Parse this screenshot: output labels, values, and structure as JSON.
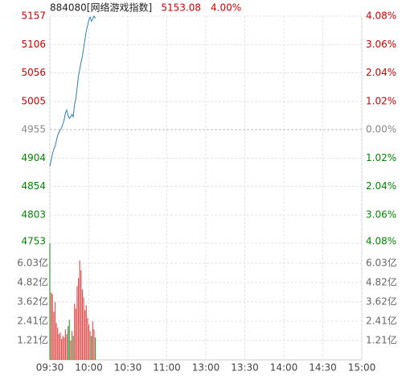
{
  "header": {
    "name": "884080[网络游戏指数]",
    "price": "5153.08",
    "change": "4.00%"
  },
  "chart_data": [
    {
      "type": "line",
      "x": [
        0,
        1,
        2,
        3,
        4,
        5,
        6,
        7,
        8,
        9,
        10,
        11,
        12,
        13,
        14,
        15,
        16,
        17,
        18,
        19,
        20,
        21,
        22,
        23,
        24,
        25,
        26,
        27,
        28,
        29,
        30,
        31,
        32,
        33,
        34,
        35
      ],
      "xlim": [
        0,
        240
      ],
      "xticks": [
        {
          "value": 0,
          "label": "09:30"
        },
        {
          "value": 30,
          "label": "10:00"
        },
        {
          "value": 60,
          "label": "10:30"
        },
        {
          "value": 90,
          "label": "11:00"
        },
        {
          "value": 120,
          "label": "13:00"
        },
        {
          "value": 150,
          "label": "13:30"
        },
        {
          "value": 180,
          "label": "14:00"
        },
        {
          "value": 210,
          "label": "14:30"
        },
        {
          "value": 240,
          "label": "15:00"
        }
      ],
      "ylim": [
        4753,
        5157
      ],
      "yticks": [
        4753,
        4803,
        4854,
        4904,
        4955,
        5005,
        5056,
        5106,
        5157
      ],
      "y2lim": [
        -4.08,
        4.08
      ],
      "y2ticks": [
        {
          "value": -4.08,
          "label": "4.08%"
        },
        {
          "value": -3.06,
          "label": "3.06%"
        },
        {
          "value": -2.04,
          "label": "2.04%"
        },
        {
          "value": -1.02,
          "label": "1.02%"
        },
        {
          "value": 0,
          "label": "0.00%"
        },
        {
          "value": 1.02,
          "label": "1.02%"
        },
        {
          "value": 2.04,
          "label": "2.04%"
        },
        {
          "value": 3.06,
          "label": "3.06%"
        },
        {
          "value": 4.08,
          "label": "4.08%"
        }
      ],
      "series": [
        {
          "color": "#2f7fb5",
          "values": [
            4890,
            4900,
            4912,
            4920,
            4925,
            4935,
            4945,
            4950,
            4955,
            4958,
            4965,
            4972,
            4985,
            4990,
            4980,
            4975,
            4978,
            4982,
            4978,
            5000,
            5010,
            5030,
            5050,
            5062,
            5075,
            5085,
            5100,
            5115,
            5130,
            5140,
            5150,
            5155,
            5148,
            5152,
            5157,
            5153.08
          ]
        }
      ],
      "grid": true
    },
    {
      "type": "bar",
      "values": [
        7.27,
        4.2,
        4.1,
        3.0,
        3.6,
        2.3,
        2.0,
        1.6,
        1.7,
        1.3,
        1.5,
        1.4,
        1.9,
        1.6,
        2.1,
        2.5,
        1.2,
        1.8,
        1.5,
        3.5,
        3.2,
        4.6,
        5.1,
        6.2,
        5.6,
        4.4,
        3.9,
        3.1,
        3.4,
        2.6,
        2.2,
        1.8,
        1.5,
        2.4,
        1.9,
        1.4
      ],
      "colors": [
        "#3a9a3a",
        "#e05555",
        "#e05555",
        "#e05555",
        "#e05555",
        "#e05555",
        "#e05555",
        "#e05555",
        "#e05555",
        "#e05555",
        "#e05555",
        "#e05555",
        "#e05555",
        "#e05555",
        "#3a9a3a",
        "#3a9a3a",
        "#e05555",
        "#e05555",
        "#3a9a3a",
        "#e05555",
        "#e05555",
        "#e05555",
        "#e05555",
        "#e05555",
        "#e05555",
        "#e05555",
        "#e05555",
        "#e05555",
        "#e05555",
        "#e05555",
        "#e05555",
        "#e05555",
        "#3a9a3a",
        "#e05555",
        "#e05555",
        "#3a9a3a"
      ],
      "ylim": [
        0,
        7.28
      ],
      "yticks": [
        {
          "value": 1.21,
          "label": "1.21亿"
        },
        {
          "value": 2.41,
          "label": "2.41亿"
        },
        {
          "value": 3.62,
          "label": "3.62亿"
        },
        {
          "value": 4.82,
          "label": "4.82亿"
        },
        {
          "value": 6.03,
          "label": "6.03亿"
        }
      ],
      "grid": true
    }
  ]
}
